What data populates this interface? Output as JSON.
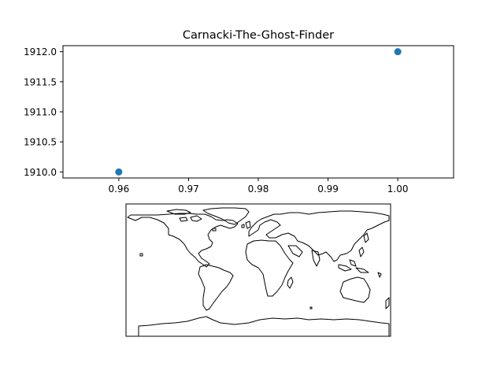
{
  "chart_data": [
    {
      "type": "scatter",
      "title": "Carnacki-The-Ghost-Finder",
      "xlabel": "",
      "ylabel": "",
      "xlim": [
        0.952,
        1.008
      ],
      "ylim": [
        1909.9,
        1912.1
      ],
      "x_ticks": [
        "0.96",
        "0.97",
        "0.98",
        "0.99",
        "1.00"
      ],
      "y_ticks": [
        "1910.0",
        "1910.5",
        "1911.0",
        "1911.5",
        "1912.0"
      ],
      "grid": false,
      "series": [
        {
          "color": "#1f77b4",
          "points": [
            {
              "x": 0.96,
              "y": 1910.0
            },
            {
              "x": 1.0,
              "y": 1912.0
            }
          ]
        }
      ]
    },
    {
      "type": "map",
      "projection": "plate-carree",
      "content": "world coastlines",
      "grid": false
    }
  ]
}
